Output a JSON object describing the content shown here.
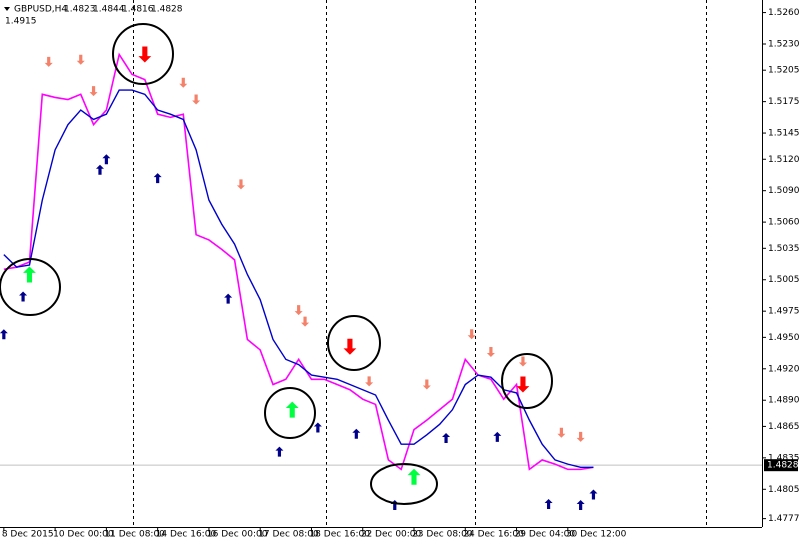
{
  "chart_data": {
    "type": "line",
    "title": "GBPUSD,H4",
    "ohlc": [
      1.4823,
      1.4844,
      1.4816,
      1.4828
    ],
    "indicator_value": 1.4915,
    "last_price": 1.4828,
    "xlim": [
      -0.6,
      118.3
    ],
    "xticks": [
      {
        "value": 0,
        "label": "8 Dec 2015"
      },
      {
        "value": 8,
        "label": "10 Dec 00:00"
      },
      {
        "value": 16,
        "label": "11 Dec 08:00"
      },
      {
        "value": 24,
        "label": "14 Dec 16:00"
      },
      {
        "value": 32,
        "label": "16 Dec 00:00"
      },
      {
        "value": 40,
        "label": "17 Dec 08:00"
      },
      {
        "value": 48,
        "label": "18 Dec 16:00"
      },
      {
        "value": 56,
        "label": "22 Dec 00:00"
      },
      {
        "value": 64,
        "label": "23 Dec 08:00"
      },
      {
        "value": 72,
        "label": "24 Dec 16:00"
      },
      {
        "value": 80,
        "label": "29 Dec 04:00"
      },
      {
        "value": 88,
        "label": "30 Dec 12:00"
      }
    ],
    "ylim": [
      1.4769,
      1.5272
    ],
    "yticks": [
      {
        "value": 1.526,
        "label": "1.5260"
      },
      {
        "value": 1.523,
        "label": "1.5230"
      },
      1.5205,
      1.5175,
      1.5145,
      {
        "value": 1.512,
        "label": "1.5120"
      },
      {
        "value": 1.509,
        "label": "1.5090"
      },
      {
        "value": 1.506,
        "label": "1.5060"
      },
      1.5035,
      1.5005,
      1.4975,
      {
        "value": 1.495,
        "label": "1.4950"
      },
      {
        "value": 1.492,
        "label": "1.4920"
      },
      {
        "value": 1.489,
        "label": "1.4890"
      },
      1.4865,
      1.4835,
      1.4805,
      1.4777
    ],
    "x": [
      0,
      2,
      4,
      6,
      8,
      10,
      12,
      14,
      16,
      18,
      20,
      22,
      24,
      26,
      28,
      30,
      32,
      34,
      36,
      38,
      40,
      42,
      44,
      46,
      48,
      50,
      52,
      54,
      56,
      58,
      60,
      62,
      64,
      66,
      68,
      70,
      72,
      74,
      76,
      78,
      80,
      82,
      84,
      86,
      88,
      90,
      92
    ],
    "series": [
      {
        "color": "#ff00ff",
        "values": [
          1.5015,
          1.5017,
          1.5022,
          1.5182,
          1.5179,
          1.5177,
          1.5182,
          1.5153,
          1.5167,
          1.522,
          1.5201,
          1.5196,
          1.5163,
          1.516,
          1.5163,
          1.5048,
          1.5043,
          1.5034,
          1.5024,
          1.4948,
          1.4938,
          1.4905,
          1.491,
          1.4929,
          1.491,
          1.491,
          1.4905,
          1.49,
          1.4891,
          1.4886,
          1.4833,
          1.4824,
          1.4862,
          1.4871,
          1.4881,
          1.4891,
          1.4929,
          1.4914,
          1.491,
          1.4891,
          1.4905,
          1.4824,
          1.4833,
          1.4829,
          1.4824,
          1.4824,
          1.4826
        ]
      },
      {
        "color": "#0000cd",
        "values": [
          1.5029,
          1.5017,
          1.5019,
          1.5081,
          1.5129,
          1.5153,
          1.5167,
          1.5158,
          1.5163,
          1.5186,
          1.5186,
          1.5182,
          1.5167,
          1.5163,
          1.5158,
          1.5129,
          1.5081,
          1.5058,
          1.5039,
          1.501,
          1.4986,
          1.4948,
          1.4929,
          1.4924,
          1.4914,
          1.4912,
          1.491,
          1.4905,
          1.49,
          1.4895,
          1.4871,
          1.4848,
          1.4848,
          1.4857,
          1.4867,
          1.4881,
          1.4905,
          1.4914,
          1.4912,
          1.49,
          1.4897,
          1.4871,
          1.4848,
          1.4833,
          1.4829,
          1.4826,
          1.4826
        ]
      }
    ],
    "markers": [
      {
        "color": "#f4826a",
        "direction": "down",
        "size": "small",
        "x": [
          7,
          12,
          14,
          28,
          30,
          37,
          46,
          47,
          57,
          66,
          73,
          76,
          81,
          87,
          90
        ],
        "values": [
          1.5213,
          1.5215,
          1.5185,
          1.5193,
          1.5177,
          1.5096,
          1.4976,
          1.4965,
          1.4908,
          1.4905,
          1.4953,
          1.4936,
          1.4927,
          1.4859,
          1.4855
        ]
      },
      {
        "color": "#00008b",
        "direction": "up",
        "size": "small",
        "x": [
          0,
          3,
          15,
          16,
          24,
          35,
          43,
          49,
          55,
          61,
          69,
          77,
          85,
          90,
          92
        ],
        "values": [
          1.4953,
          1.4989,
          1.511,
          1.512,
          1.5102,
          1.4987,
          1.4841,
          1.4864,
          1.4858,
          1.479,
          1.4854,
          1.4855,
          1.4791,
          1.479,
          1.48
        ]
      },
      {
        "color": "#ff0000",
        "direction": "down",
        "size": "big",
        "x": [
          22,
          54,
          81
        ],
        "values": [
          1.522,
          1.4941,
          1.4905
        ]
      },
      {
        "color": "#00ff40",
        "direction": "up",
        "size": "big",
        "x": [
          4,
          45,
          64
        ],
        "values": [
          1.501,
          1.4881,
          1.4817
        ]
      }
    ]
  }
}
